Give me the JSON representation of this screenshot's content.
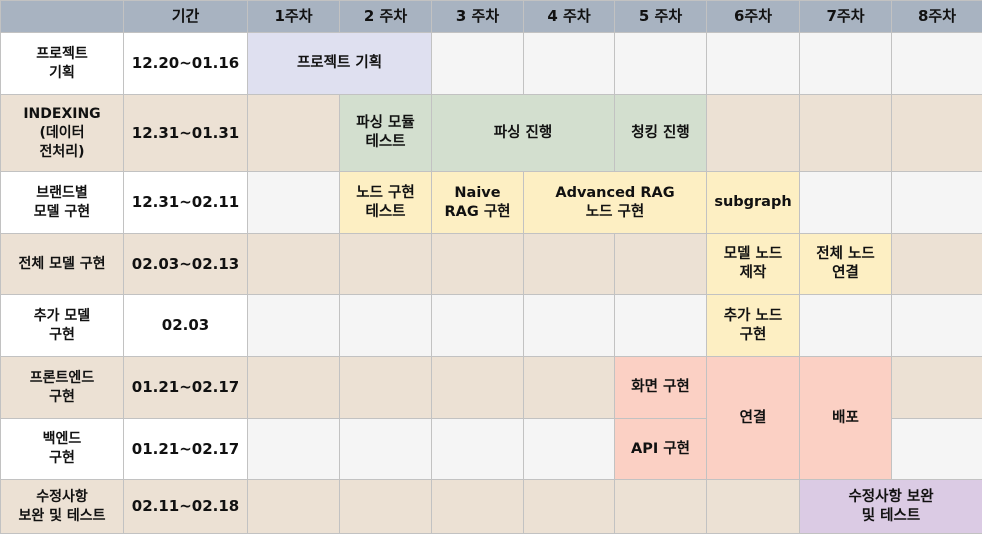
{
  "header": {
    "corner": "",
    "period": "기간",
    "weeks": [
      "1주차",
      "2 주차",
      "3 주차",
      "4 주차",
      "5 주차",
      "6주차",
      "7주차",
      "8주차"
    ]
  },
  "rows": [
    {
      "task": [
        "프로젝트",
        "기획"
      ],
      "period": "12.20~01.16"
    },
    {
      "task": [
        "INDEXING",
        "(데이터",
        "전처리)"
      ],
      "period": "12.31~01.31"
    },
    {
      "task": [
        "브랜드별",
        "모델 구현"
      ],
      "period": "12.31~02.11"
    },
    {
      "task": [
        "전체 모델 구현"
      ],
      "period": "02.03~02.13"
    },
    {
      "task": [
        "추가 모델",
        "구현"
      ],
      "period": "02.03"
    },
    {
      "task": [
        "프론트엔드",
        "구현"
      ],
      "period": "01.21~02.17"
    },
    {
      "task": [
        "백엔드",
        "구현"
      ],
      "period": "01.21~02.17"
    },
    {
      "task": [
        "수정사항",
        "보완 및 테스트"
      ],
      "period": "02.11~02.18"
    }
  ],
  "bars": {
    "planning": [
      "프로젝트 기획"
    ],
    "parsing_module": [
      "파싱 모듈",
      "테스트"
    ],
    "parsing": [
      "파싱 진행"
    ],
    "chunking": [
      "청킹 진행"
    ],
    "node_test": [
      "노드 구현",
      "테스트"
    ],
    "naive_rag": [
      "Naive",
      "RAG 구현"
    ],
    "advanced_rag": [
      "Advanced RAG",
      "노드 구현"
    ],
    "subgraph": [
      "subgraph"
    ],
    "model_node": [
      "모델 노드",
      "제작"
    ],
    "full_node": [
      "전체 노드",
      "연결"
    ],
    "extra_node": [
      "추가 노드",
      "구현"
    ],
    "screen": [
      "화면 구현"
    ],
    "api": [
      "API 구현"
    ],
    "connect": [
      "연결"
    ],
    "deploy": [
      "배포"
    ],
    "revision": [
      "수정사항 보완",
      "및 테스트"
    ]
  },
  "colors": {
    "header": "#a8b3c1",
    "lavender": "#dfe0f0",
    "green": "#d3dfcf",
    "yellow": "#fdefc3",
    "salmon": "#fbd0c4",
    "purple": "#dbcbe4",
    "band_beige": "#ece1d4",
    "band_gray": "#f5f5f5"
  }
}
